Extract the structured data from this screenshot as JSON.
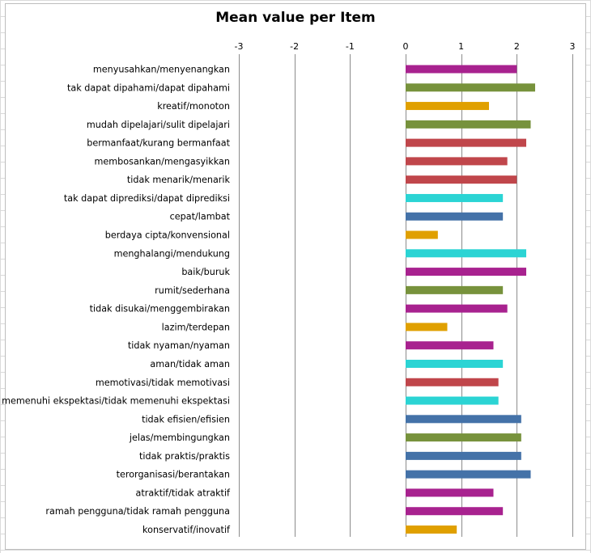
{
  "chart_data": {
    "type": "bar",
    "title": "Mean value per Item",
    "xlim": [
      -3,
      3
    ],
    "ticks": [
      "-3",
      "-2",
      "-1",
      "0",
      "1",
      "2",
      "3"
    ],
    "grid": true,
    "categories": [
      "menyusahkan/menyenangkan",
      "tak dapat dipahami/dapat dipahami",
      "kreatif/monoton",
      "mudah dipelajari/sulit dipelajari",
      "bermanfaat/kurang bermanfaat",
      "membosankan/mengasyikkan",
      "tidak menarik/menarik",
      "tak dapat diprediksi/dapat diprediksi",
      "cepat/lambat",
      "berdaya cipta/konvensional",
      "menghalangi/mendukung",
      "baik/buruk",
      "rumit/sederhana",
      "tidak disukai/menggembirakan",
      "lazim/terdepan",
      "tidak nyaman/nyaman",
      "aman/tidak aman",
      "memotivasi/tidak memotivasi",
      "memenuhi ekspektasi/tidak memenuhi ekspektasi",
      "tidak efisien/efisien",
      "jelas/membingungkan",
      "tidak praktis/praktis",
      "terorganisasi/berantakan",
      "atraktif/tidak atraktif",
      "ramah pengguna/tidak ramah pengguna",
      "konservatif/inovatif"
    ],
    "values": [
      2.0,
      2.33,
      1.5,
      2.25,
      2.17,
      1.83,
      2.0,
      1.75,
      1.75,
      0.58,
      2.17,
      2.17,
      1.75,
      1.83,
      0.75,
      1.58,
      1.75,
      1.67,
      1.67,
      2.08,
      2.08,
      2.08,
      2.25,
      1.58,
      1.75,
      0.92
    ],
    "colors": [
      "#a8228f",
      "#77923c",
      "#e0a000",
      "#77923c",
      "#c0464b",
      "#c0464b",
      "#c0464b",
      "#2bd4d4",
      "#4472a8",
      "#e0a000",
      "#2bd4d4",
      "#a8228f",
      "#77923c",
      "#a8228f",
      "#e0a000",
      "#a8228f",
      "#2bd4d4",
      "#c0464b",
      "#2bd4d4",
      "#4472a8",
      "#77923c",
      "#4472a8",
      "#4472a8",
      "#a8228f",
      "#a8228f",
      "#e0a000"
    ]
  }
}
